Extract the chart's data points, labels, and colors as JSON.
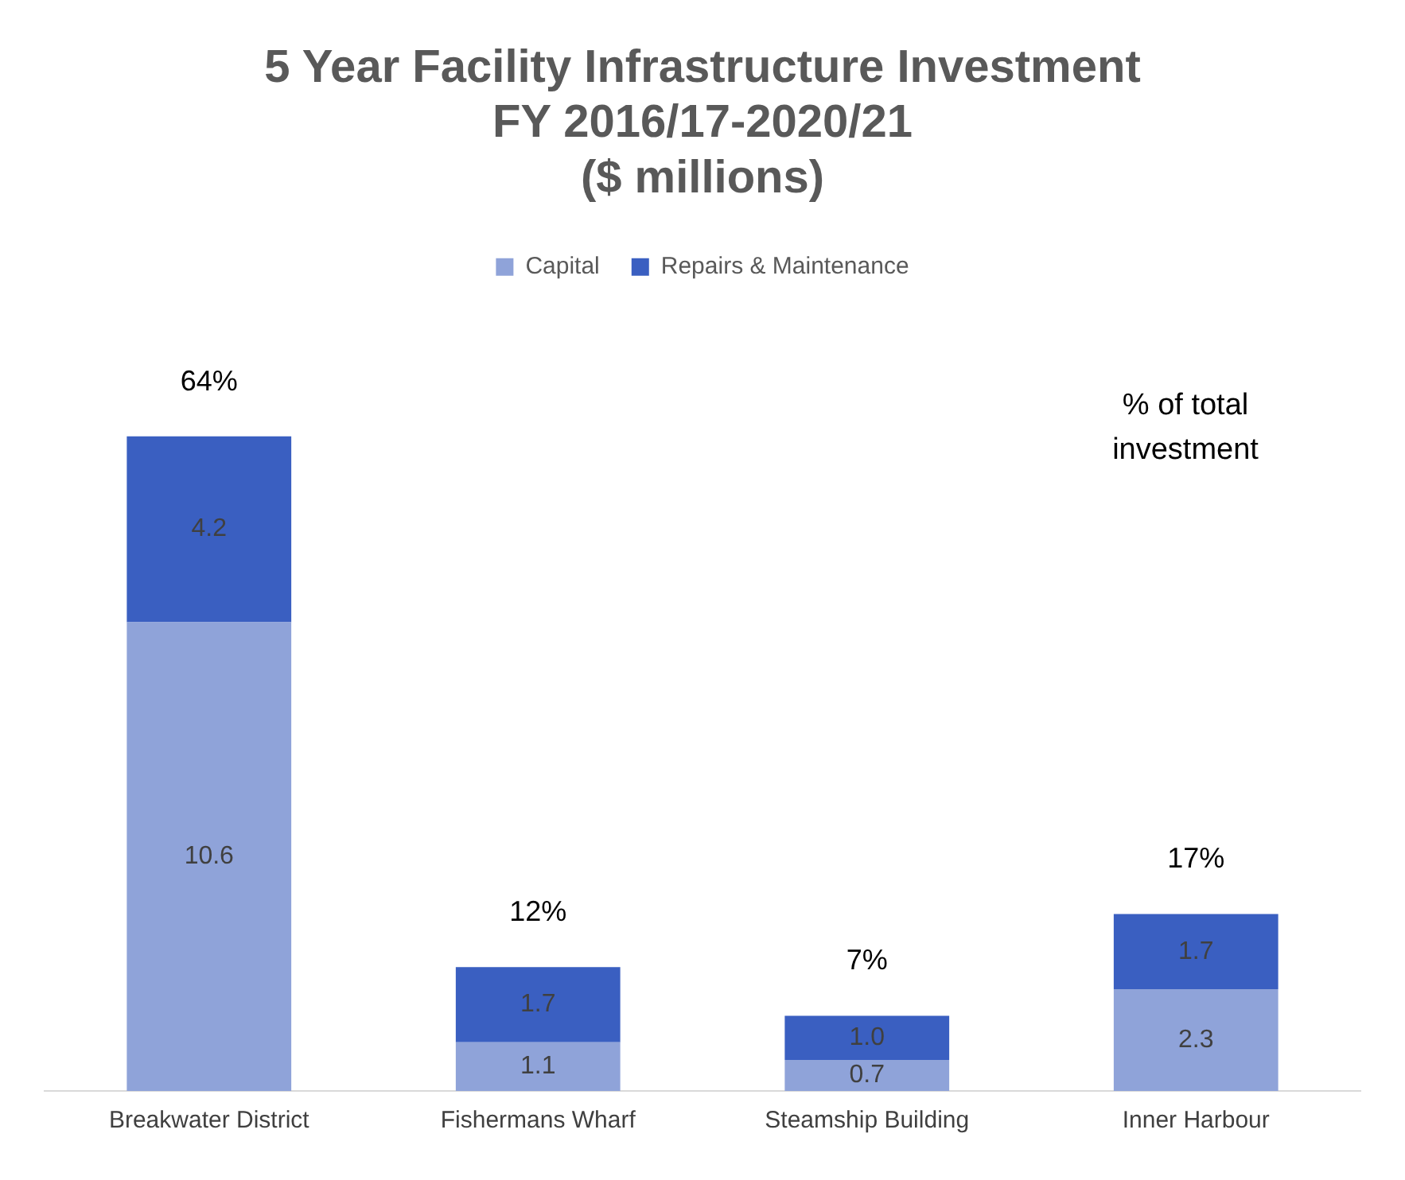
{
  "chart_data": {
    "type": "bar",
    "title": "5 Year Facility Infrastructure Investment\nFY 2016/17-2020/21\n($ millions)",
    "categories": [
      "Breakwater District",
      "Fishermans Wharf",
      "Steamship Building",
      "Inner Harbour"
    ],
    "stacked": true,
    "legend": "top",
    "grid": false,
    "series": [
      {
        "name": "Capital",
        "color": "#8fa3d9",
        "values": [
          10.6,
          1.1,
          0.7,
          2.3
        ],
        "value_labels": [
          "10.6",
          "1.1",
          "0.7",
          "2.3"
        ]
      },
      {
        "name": "Repairs & Maintenance",
        "color": "#3a5fc1",
        "values": [
          4.2,
          1.7,
          1.0,
          1.7
        ],
        "value_labels": [
          "4.2",
          "1.7",
          "1.0",
          "1.7"
        ]
      }
    ],
    "annotations": [
      {
        "text": "64%",
        "x": "Breakwater District",
        "y": 14.8
      },
      {
        "text": "12%",
        "x": "Fishermans Wharf",
        "y": 2.8
      },
      {
        "text": "7%",
        "x": "Steamship Building",
        "y": 1.7
      },
      {
        "text": "17%",
        "x": "Inner Harbour",
        "y": 4.0
      },
      "% of total\ninvestment"
    ]
  }
}
